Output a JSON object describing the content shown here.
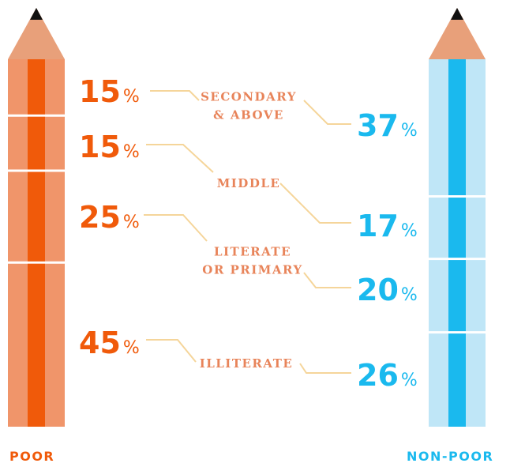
{
  "chart_data": {
    "type": "stacked-pencil",
    "categories": [
      "SECONDARY\n& ABOVE",
      "MIDDLE",
      "LITERATE\nOR PRIMARY",
      "ILLITERATE"
    ],
    "unit": "%",
    "series": [
      {
        "name": "POOR",
        "color": "#f05a0a",
        "light": "#f0956a",
        "values": [
          15,
          15,
          25,
          45
        ]
      },
      {
        "name": "NON-POOR",
        "color": "#1ab9ee",
        "light": "#bfe6f7",
        "values": [
          37,
          17,
          20,
          26
        ]
      }
    ]
  }
}
